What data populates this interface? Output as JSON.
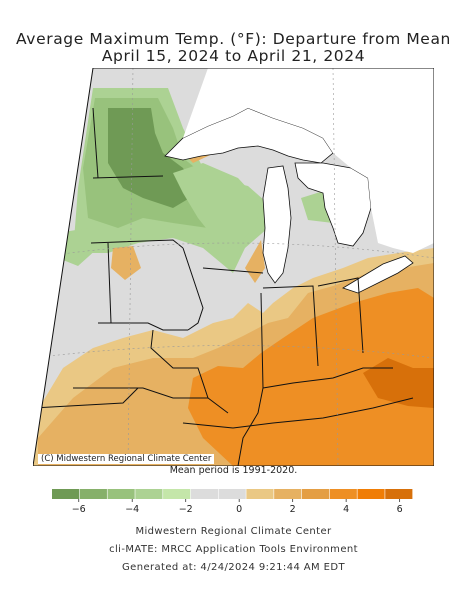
{
  "title_line1": "Average Maximum Temp. (°F): Departure from Mean",
  "title_line2": "April 15, 2024 to April 21, 2024",
  "map_credit": "(C) Midwestern Regional Climate Center",
  "mean_period": "Mean period is 1991-2020.",
  "legend": {
    "colors": [
      "#6f9a55",
      "#86b06a",
      "#98c27c",
      "#acd293",
      "#c4e6a9",
      "#dcdcdc",
      "#dcdcdc",
      "#eac884",
      "#e6b162",
      "#e49e44",
      "#ee8f24",
      "#f07d05",
      "#d7700a"
    ],
    "tick_labels": [
      "−6",
      "−4",
      "−2",
      "0",
      "2",
      "4",
      "6"
    ],
    "tick_values": [
      -6,
      -4,
      -2,
      0,
      2,
      4,
      6
    ],
    "range": [
      -7,
      6.5
    ]
  },
  "footer": {
    "line1": "Midwestern Regional Climate Center",
    "line2": "cli-MATE: MRCC Application Tools Environment",
    "line3": "Generated at: 4/24/2024 9:21:44 AM EDT"
  },
  "map_colors": {
    "water": "#ffffff",
    "neutral": "#dcdcdc",
    "green_light": "#acd293",
    "green_mid": "#98c27c",
    "green_dark": "#6f9a55",
    "orange_light": "#eac884",
    "orange_mid": "#e6b162",
    "orange_strong": "#ee8f24",
    "orange_deep": "#d7700a"
  }
}
